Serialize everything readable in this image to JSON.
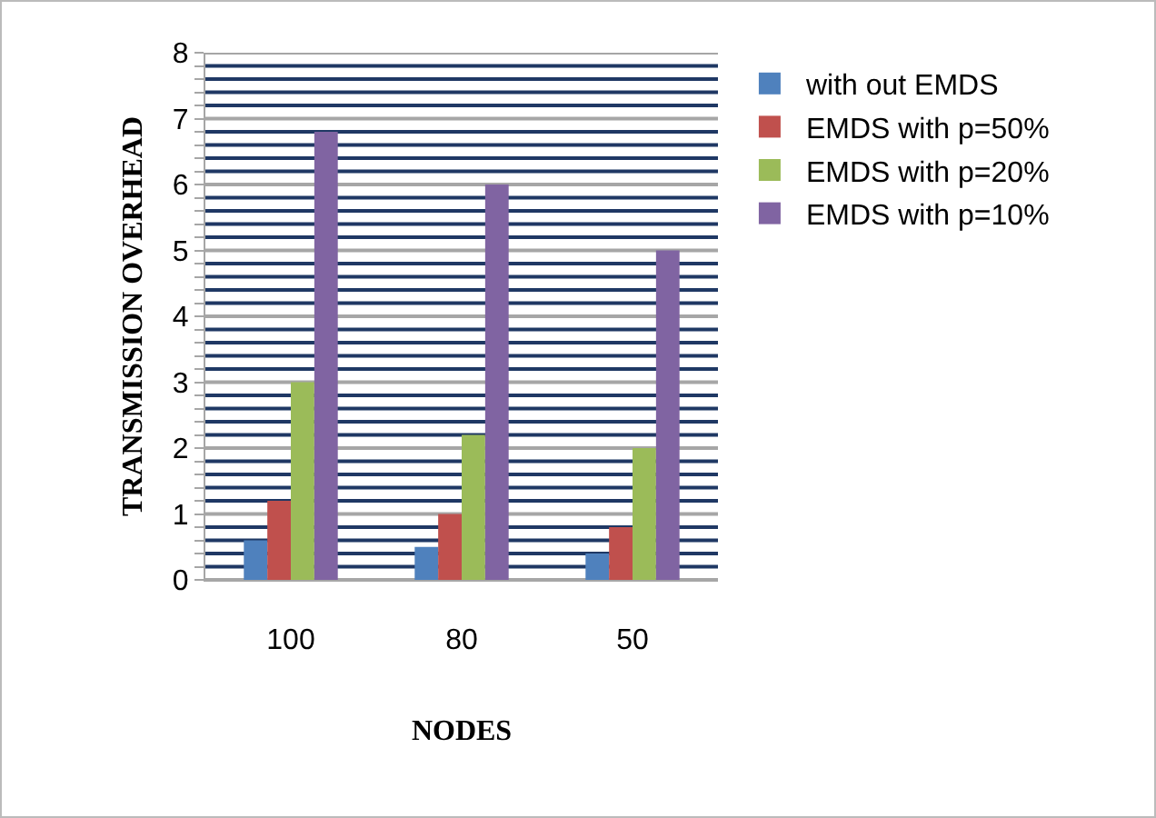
{
  "chart_data": {
    "type": "bar",
    "xlabel": "NODES",
    "ylabel": "TRANSMISSION OVERHEAD",
    "categories": [
      "100",
      "80",
      "50"
    ],
    "series": [
      {
        "name": "with out EMDS",
        "color": "#4f81bd",
        "values": [
          0.6,
          0.5,
          0.4
        ]
      },
      {
        "name": "EMDS with p=50%",
        "color": "#c0504d",
        "values": [
          1.2,
          1.0,
          0.8
        ]
      },
      {
        "name": "EMDS with p=20%",
        "color": "#9bbb59",
        "values": [
          3.0,
          2.2,
          2.0
        ]
      },
      {
        "name": "EMDS with p=10%",
        "color": "#8064a2",
        "values": [
          6.8,
          6.0,
          5.0
        ]
      }
    ],
    "ylim": [
      0,
      8
    ],
    "yticks": [
      0,
      {
        "value": 0.2,
        "label": null
      },
      {
        "value": 0.4,
        "label": null
      },
      {
        "value": 0.6,
        "label": null
      },
      {
        "value": 0.8,
        "label": null
      },
      1,
      {
        "value": 1.2,
        "label": null
      },
      {
        "value": 1.4,
        "label": null
      },
      {
        "value": 1.6,
        "label": null
      },
      {
        "value": 1.8,
        "label": null
      },
      2,
      {
        "value": 2.2,
        "label": null
      },
      {
        "value": 2.4,
        "label": null
      },
      {
        "value": 2.6,
        "label": null
      },
      {
        "value": 2.8,
        "label": null
      },
      3,
      {
        "value": 3.2,
        "label": null
      },
      {
        "value": 3.4,
        "label": null
      },
      {
        "value": 3.6,
        "label": null
      },
      {
        "value": 3.8,
        "label": null
      },
      4,
      {
        "value": 4.2,
        "label": null
      },
      {
        "value": 4.4,
        "label": null
      },
      {
        "value": 4.6,
        "label": null
      },
      {
        "value": 4.8,
        "label": null
      },
      5,
      {
        "value": 5.2,
        "label": null
      },
      {
        "value": 5.4,
        "label": null
      },
      {
        "value": 5.6,
        "label": null
      },
      {
        "value": 5.8,
        "label": null
      },
      6,
      {
        "value": 6.2,
        "label": null
      },
      {
        "value": 6.4,
        "label": null
      },
      {
        "value": 6.6,
        "label": null
      },
      {
        "value": 6.8,
        "label": null
      },
      7,
      {
        "value": 7.2,
        "label": null
      },
      {
        "value": 7.4,
        "label": null
      },
      {
        "value": 7.6,
        "label": null
      },
      {
        "value": 7.8,
        "label": null
      },
      8
    ],
    "grid": true,
    "legend": "right"
  }
}
